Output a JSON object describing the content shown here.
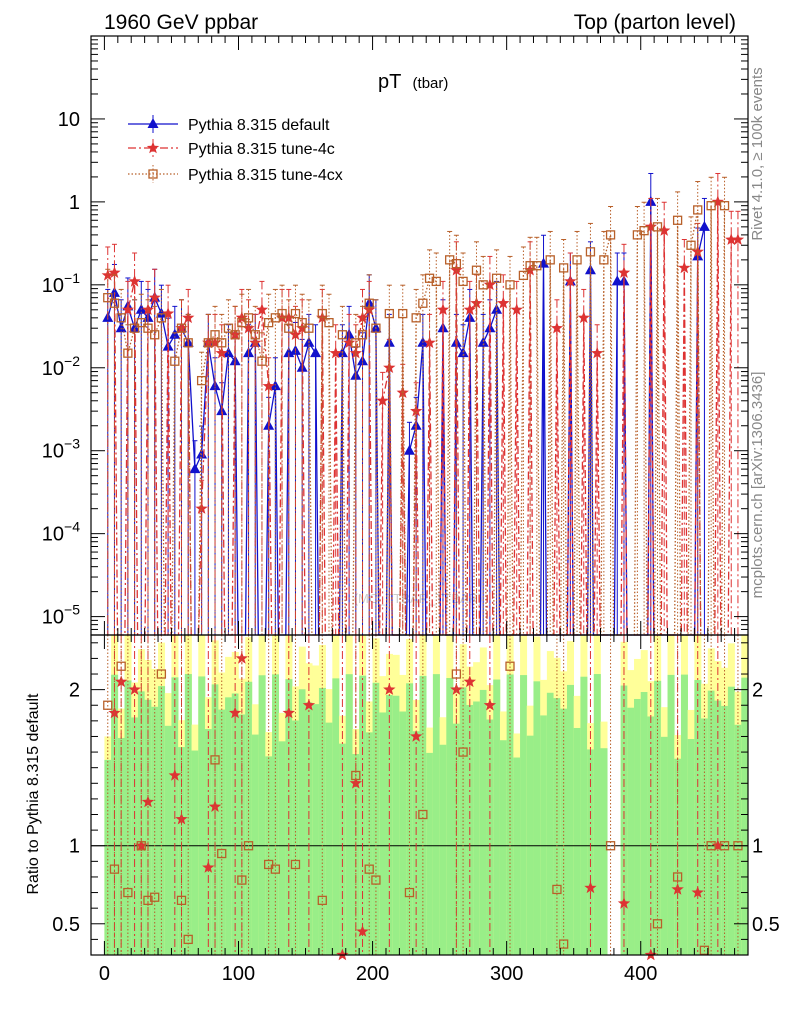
{
  "header": {
    "left": "1960 GeV ppbar",
    "right": "Top (parton level)"
  },
  "side_text": {
    "rivet": "Rivet 4.1.0, ≥ 100k events",
    "mcplots": "mcplots.cern.ch [arXiv:1306.3436]"
  },
  "watermark": "(MC_TTBAR_TTBAR)",
  "colors": {
    "default": "#1111cc",
    "tune4c": "#dd3333",
    "tune4cx": "#b8602a",
    "band_inner": "#99ee88",
    "band_outer": "#ffff99"
  },
  "chart_data": [
    {
      "type": "line",
      "title_main": "pT",
      "title_sub": "(tbar)",
      "xlabel": "",
      "ylabel": "",
      "yscale": "log",
      "xlim": [
        -10,
        480
      ],
      "ylim": [
        6e-06,
        100
      ],
      "y_ticks": [
        {
          "value": 10,
          "label_base": "10",
          "label_exp": ""
        },
        {
          "value": 1,
          "label_base": "1",
          "label_exp": ""
        },
        {
          "value": 0.1,
          "label_base": "10",
          "label_exp": "−1"
        },
        {
          "value": 0.01,
          "label_base": "10",
          "label_exp": "−2"
        },
        {
          "value": 0.001,
          "label_base": "10",
          "label_exp": "−3"
        },
        {
          "value": 0.0001,
          "label_base": "10",
          "label_exp": "−4"
        },
        {
          "value": 1e-05,
          "label_base": "10",
          "label_exp": "−5"
        }
      ],
      "legend": [
        {
          "name": "Pythia 8.315 default",
          "marker": "triangle",
          "style": "solid",
          "key": "default"
        },
        {
          "name": "Pythia 8.315 tune-4c",
          "marker": "star",
          "style": "dashdot",
          "key": "tune4c"
        },
        {
          "name": "Pythia 8.315 tune-4cx",
          "marker": "square",
          "style": "dotted",
          "key": "tune4cx"
        }
      ],
      "series": [
        {
          "name": "Pythia 8.315 default",
          "x": [
            2.5,
            7.5,
            12.5,
            17.5,
            22.5,
            27.5,
            32.5,
            37.5,
            42.5,
            47.5,
            52.5,
            57.5,
            62.5,
            67.5,
            72.5,
            77.5,
            82.5,
            87.5,
            92.5,
            97.5,
            107.5,
            112.5,
            122.5,
            127.5,
            137.5,
            142.5,
            147.5,
            152.5,
            157.5,
            177.5,
            182.5,
            187.5,
            192.5,
            197.5,
            202.5,
            212.5,
            227.5,
            232.5,
            237.5,
            252.5,
            262.5,
            267.5,
            272.5,
            282.5,
            287.5,
            292.5,
            327.5,
            347.5,
            362.5,
            382.5,
            387.5,
            407.5,
            442.5,
            447.5
          ],
          "values": [
            0.04,
            0.08,
            0.03,
            0.055,
            0.03,
            0.05,
            0.04,
            0.07,
            0.045,
            0.018,
            0.025,
            0.03,
            0.02,
            0.0006,
            0.0009,
            0.02,
            0.006,
            0.003,
            0.015,
            0.012,
            0.015,
            0.02,
            0.002,
            0.006,
            0.015,
            0.016,
            0.01,
            0.02,
            0.015,
            0.015,
            0.025,
            0.008,
            0.012,
            0.06,
            0.03,
            0.02,
            0.001,
            0.002,
            0.02,
            0.03,
            0.02,
            0.015,
            0.04,
            0.02,
            0.03,
            0.05,
            0.18,
            0.11,
            0.15,
            0.11,
            0.11,
            1.0,
            0.22,
            0.5
          ]
        },
        {
          "name": "Pythia 8.315 tune-4c",
          "x": [
            2.5,
            7.5,
            17.5,
            22.5,
            32.5,
            37.5,
            47.5,
            57.5,
            62.5,
            72.5,
            77.5,
            82.5,
            87.5,
            97.5,
            102.5,
            107.5,
            112.5,
            117.5,
            122.5,
            132.5,
            137.5,
            142.5,
            147.5,
            162.5,
            172.5,
            182.5,
            187.5,
            192.5,
            197.5,
            207.5,
            212.5,
            222.5,
            232.5,
            242.5,
            252.5,
            262.5,
            272.5,
            277.5,
            287.5,
            297.5,
            307.5,
            317.5,
            337.5,
            347.5,
            357.5,
            367.5,
            387.5,
            407.5,
            417.5,
            432.5,
            442.5,
            457.5,
            467.5,
            472.5
          ],
          "values": [
            0.13,
            0.14,
            0.05,
            0.11,
            0.05,
            0.07,
            0.045,
            0.03,
            0.04,
            0.0002,
            0.02,
            0.02,
            0.015,
            0.025,
            0.04,
            0.03,
            0.02,
            0.05,
            0.006,
            0.04,
            0.04,
            0.025,
            0.03,
            0.04,
            0.015,
            0.02,
            0.015,
            0.04,
            0.05,
            0.004,
            0.01,
            0.005,
            0.003,
            0.02,
            0.05,
            0.15,
            0.05,
            0.06,
            0.1,
            0.06,
            0.05,
            0.15,
            0.03,
            0.11,
            0.04,
            0.015,
            0.14,
            0.5,
            0.45,
            0.16,
            0.25,
            1.0,
            0.35,
            0.35
          ]
        },
        {
          "name": "Pythia 8.315 tune-4cx",
          "x": [
            2.5,
            7.5,
            12.5,
            17.5,
            22.5,
            27.5,
            32.5,
            37.5,
            42.5,
            52.5,
            57.5,
            62.5,
            72.5,
            77.5,
            82.5,
            87.5,
            92.5,
            97.5,
            102.5,
            107.5,
            112.5,
            117.5,
            122.5,
            127.5,
            132.5,
            137.5,
            142.5,
            147.5,
            152.5,
            162.5,
            167.5,
            177.5,
            187.5,
            192.5,
            197.5,
            202.5,
            212.5,
            222.5,
            232.5,
            237.5,
            242.5,
            247.5,
            257.5,
            262.5,
            267.5,
            277.5,
            282.5,
            292.5,
            302.5,
            312.5,
            317.5,
            322.5,
            332.5,
            342.5,
            352.5,
            362.5,
            372.5,
            377.5,
            397.5,
            402.5,
            412.5,
            427.5,
            437.5,
            442.5,
            452.5,
            462.5
          ],
          "values": [
            0.07,
            0.06,
            0.04,
            0.015,
            0.03,
            0.035,
            0.03,
            0.025,
            0.04,
            0.012,
            0.03,
            0.02,
            0.007,
            0.02,
            0.025,
            0.02,
            0.03,
            0.025,
            0.035,
            0.04,
            0.025,
            0.012,
            0.035,
            0.04,
            0.045,
            0.03,
            0.045,
            0.035,
            0.03,
            0.045,
            0.035,
            0.025,
            0.02,
            0.025,
            0.06,
            0.03,
            0.045,
            0.045,
            0.04,
            0.06,
            0.12,
            0.11,
            0.2,
            0.18,
            0.11,
            0.15,
            0.1,
            0.12,
            0.1,
            0.13,
            0.17,
            0.17,
            0.2,
            0.16,
            0.2,
            0.25,
            0.2,
            0.4,
            0.4,
            0.45,
            0.5,
            0.6,
            0.3,
            0.8,
            0.9,
            0.9
          ]
        }
      ]
    },
    {
      "type": "line",
      "title": "",
      "xlabel": "",
      "ylabel": "Ratio to Pythia 8.315 default",
      "ylim": [
        0.3,
        2.35
      ],
      "xlim": [
        -10,
        480
      ],
      "x_ticks": [
        0,
        100,
        200,
        300,
        400
      ],
      "y_ticks": [
        0.5,
        1,
        2
      ],
      "reference_line": 1,
      "series": [
        {
          "name": "Pythia 8.315 tune-4c",
          "x": [
            7.5,
            12.5,
            22.5,
            27.5,
            32.5,
            52.5,
            57.5,
            77.5,
            82.5,
            97.5,
            102.5,
            137.5,
            152.5,
            177.5,
            187.5,
            192.5,
            212.5,
            232.5,
            262.5,
            272.5,
            287.5,
            362.5,
            387.5,
            407.5,
            427.5,
            442.5,
            457.5
          ],
          "values": [
            1.85,
            2.05,
            2.0,
            1.0,
            1.28,
            1.45,
            1.17,
            0.86,
            1.25,
            1.85,
            2.2,
            1.85,
            1.9,
            0.3,
            1.4,
            0.45,
            2.0,
            1.7,
            2.0,
            2.05,
            1.9,
            0.73,
            0.63,
            0.3,
            0.72,
            0.7,
            1.0
          ]
        },
        {
          "name": "Pythia 8.315 tune-4cx",
          "x": [
            2.5,
            7.5,
            12.5,
            17.5,
            27.5,
            32.5,
            37.5,
            42.5,
            57.5,
            62.5,
            82.5,
            87.5,
            102.5,
            107.5,
            122.5,
            127.5,
            142.5,
            162.5,
            187.5,
            197.5,
            202.5,
            227.5,
            237.5,
            262.5,
            267.5,
            302.5,
            337.5,
            342.5,
            377.5,
            412.5,
            427.5,
            447.5,
            452.5,
            462.5,
            472.5
          ],
          "values": [
            1.9,
            0.85,
            2.15,
            0.7,
            1.0,
            0.65,
            0.67,
            2.1,
            0.65,
            0.4,
            1.55,
            0.95,
            0.78,
            1.0,
            0.88,
            0.85,
            0.88,
            0.65,
            1.45,
            0.85,
            0.78,
            0.7,
            1.2,
            2.1,
            1.6,
            2.15,
            0.72,
            0.37,
            1.0,
            0.5,
            0.8,
            0.33,
            1.0,
            1.0,
            1.0
          ]
        }
      ]
    }
  ]
}
